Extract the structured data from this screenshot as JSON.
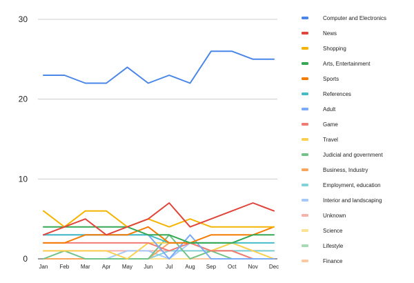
{
  "chart_data": {
    "type": "line",
    "title": "",
    "xlabel": "",
    "ylabel": "",
    "ylim": [
      0,
      30
    ],
    "yticks": [
      0,
      10,
      20,
      30
    ],
    "grid": "horizontal",
    "legend_position": "right",
    "categories": [
      "Jan",
      "Feb",
      "Mar",
      "Apr",
      "May",
      "Jun",
      "Jul",
      "Aug",
      "Sep",
      "Oct",
      "Nov",
      "Dec"
    ],
    "series": [
      {
        "name": "Computer and Electronics",
        "color": "#4a86e8",
        "values": [
          23,
          23,
          22,
          22,
          24,
          22,
          23,
          22,
          26,
          26,
          25,
          25
        ]
      },
      {
        "name": "News",
        "color": "#e0443a",
        "values": [
          3,
          4,
          5,
          3,
          4,
          5,
          7,
          4,
          5,
          6,
          7,
          6
        ]
      },
      {
        "name": "Shopping",
        "color": "#f4b400",
        "values": [
          6,
          4,
          6,
          6,
          4,
          5,
          4,
          5,
          4,
          4,
          4,
          4
        ]
      },
      {
        "name": "Arts, Entertainment",
        "color": "#34a853",
        "values": [
          4,
          4,
          4,
          4,
          4,
          3,
          3,
          2,
          2,
          2,
          3,
          3
        ]
      },
      {
        "name": "Sports",
        "color": "#f57c00",
        "values": [
          2,
          2,
          3,
          3,
          3,
          4,
          2,
          2,
          3,
          3,
          3,
          4
        ]
      },
      {
        "name": "References",
        "color": "#46bdc6",
        "values": [
          3,
          3,
          3,
          3,
          3,
          3,
          2,
          2,
          2,
          2,
          2,
          2
        ]
      },
      {
        "name": "Adult",
        "color": "#7baaf7",
        "values": [
          3,
          3,
          3,
          3,
          3,
          3,
          0,
          3,
          0,
          0,
          0,
          0
        ]
      },
      {
        "name": "Game",
        "color": "#f07b72",
        "values": [
          2,
          2,
          2,
          2,
          2,
          2,
          1,
          2,
          1,
          1,
          0,
          0
        ]
      },
      {
        "name": "Travel",
        "color": "#fcd04f",
        "values": [
          1,
          1,
          1,
          1,
          0,
          2,
          2,
          2,
          1,
          2,
          1,
          0
        ]
      },
      {
        "name": "Judicial and government",
        "color": "#71c287",
        "values": [
          0,
          1,
          0,
          0,
          0,
          0,
          3,
          0,
          1,
          0,
          0,
          0
        ]
      },
      {
        "name": "Business, Industry",
        "color": "#f7a65e",
        "values": [
          0,
          0,
          0,
          0,
          0,
          0,
          2,
          2,
          1,
          1,
          0,
          0
        ]
      },
      {
        "name": "Employment, education",
        "color": "#7fd3d9",
        "values": [
          0,
          0,
          0,
          0,
          0,
          0,
          1,
          1,
          1,
          1,
          1,
          1
        ]
      },
      {
        "name": "Interior and landscaping",
        "color": "#a6c8fa",
        "values": [
          0,
          0,
          0,
          0,
          1,
          1,
          0,
          2,
          1,
          1,
          1,
          1
        ]
      },
      {
        "name": "Unknown",
        "color": "#f7b1ab",
        "values": [
          1,
          1,
          1,
          1,
          1,
          1,
          1,
          1,
          1,
          1,
          1,
          1
        ]
      },
      {
        "name": "Science",
        "color": "#fde293",
        "values": [
          0,
          0,
          0,
          0,
          0,
          0,
          0,
          0,
          1,
          2,
          1,
          1
        ]
      },
      {
        "name": "Lifestyle",
        "color": "#a8dab5",
        "values": [
          0,
          0,
          0,
          0,
          0,
          0,
          0,
          0,
          1,
          1,
          1,
          1
        ]
      },
      {
        "name": "Finance",
        "color": "#fbc8a0",
        "values": [
          0,
          0,
          0,
          0,
          0,
          0,
          0,
          0,
          0,
          0,
          0,
          0
        ]
      }
    ]
  }
}
